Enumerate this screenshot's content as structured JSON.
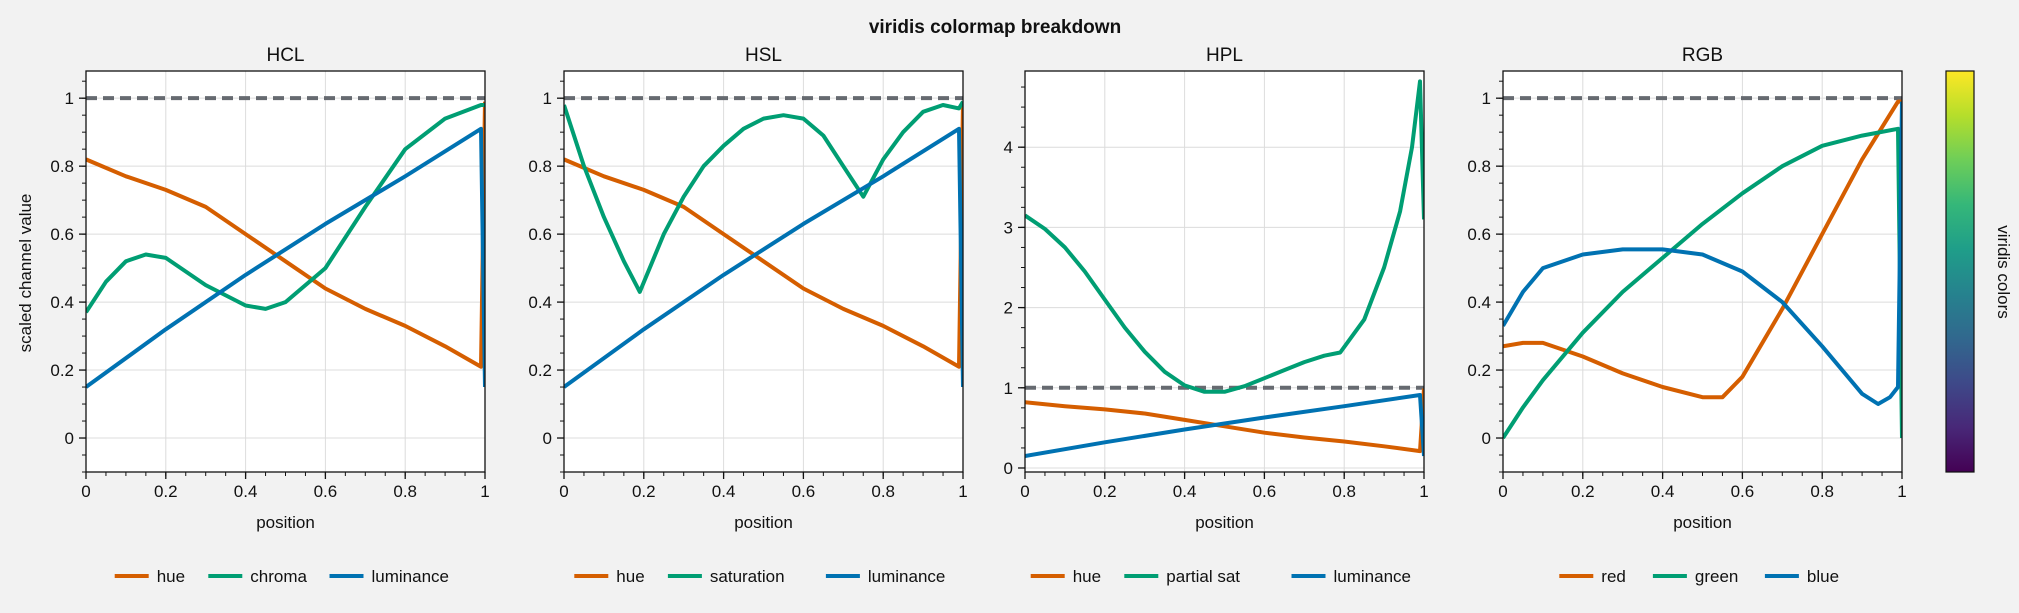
{
  "figure": {
    "suptitle": "viridis colormap breakdown",
    "shared_ylabel": "scaled channel value",
    "reference_color": "#666a70"
  },
  "colorbar": {
    "label": "viridis colors",
    "colors": [
      "#440154",
      "#482878",
      "#3e4989",
      "#31688e",
      "#26828e",
      "#1f9e89",
      "#35b779",
      "#6ece58",
      "#b5de2b",
      "#fde725"
    ]
  },
  "chart_data": [
    {
      "type": "line",
      "title": "HCL",
      "xlabel": "position",
      "ylabel": "scaled channel value",
      "xlim": [
        0,
        1
      ],
      "ylim": [
        -0.1,
        1.08
      ],
      "xticks": [
        "0",
        "0.2",
        "0.4",
        "0.6",
        "0.8",
        "1"
      ],
      "xtick_values": [
        0,
        0.2,
        0.4,
        0.6,
        0.8,
        1
      ],
      "yticks": [
        "0",
        "0.2",
        "0.4",
        "0.6",
        "0.8",
        "1"
      ],
      "ytick_values": [
        0,
        0.2,
        0.4,
        0.6,
        0.8,
        1
      ],
      "grid": true,
      "legend_position": "bottom",
      "reference_line": 1,
      "series": [
        {
          "name": "hue",
          "color": "#d55e00",
          "x": [
            0,
            0.1,
            0.2,
            0.3,
            0.4,
            0.5,
            0.6,
            0.7,
            0.8,
            0.9,
            0.99,
            1
          ],
          "y": [
            0.82,
            0.77,
            0.73,
            0.68,
            0.6,
            0.52,
            0.44,
            0.38,
            0.33,
            0.27,
            0.21,
            0.99
          ]
        },
        {
          "name": "chroma",
          "color": "#009e73",
          "x": [
            0,
            0.05,
            0.1,
            0.15,
            0.2,
            0.3,
            0.4,
            0.45,
            0.5,
            0.6,
            0.7,
            0.8,
            0.9,
            0.99,
            1
          ],
          "y": [
            0.37,
            0.46,
            0.52,
            0.54,
            0.53,
            0.45,
            0.39,
            0.38,
            0.4,
            0.5,
            0.68,
            0.85,
            0.94,
            0.98,
            0.98
          ]
        },
        {
          "name": "luminance",
          "color": "#0072b2",
          "x": [
            0,
            0.2,
            0.4,
            0.6,
            0.8,
            0.99,
            1
          ],
          "y": [
            0.15,
            0.32,
            0.48,
            0.63,
            0.77,
            0.91,
            0.15
          ]
        }
      ]
    },
    {
      "type": "line",
      "title": "HSL",
      "xlabel": "position",
      "ylabel": "",
      "xlim": [
        0,
        1
      ],
      "ylim": [
        -0.1,
        1.08
      ],
      "xticks": [
        "0",
        "0.2",
        "0.4",
        "0.6",
        "0.8",
        "1"
      ],
      "xtick_values": [
        0,
        0.2,
        0.4,
        0.6,
        0.8,
        1
      ],
      "yticks": [
        "0",
        "0.2",
        "0.4",
        "0.6",
        "0.8",
        "1"
      ],
      "ytick_values": [
        0,
        0.2,
        0.4,
        0.6,
        0.8,
        1
      ],
      "grid": true,
      "legend_position": "bottom",
      "reference_line": 1,
      "series": [
        {
          "name": "hue",
          "color": "#d55e00",
          "x": [
            0,
            0.1,
            0.2,
            0.3,
            0.4,
            0.5,
            0.6,
            0.7,
            0.8,
            0.9,
            0.99,
            1
          ],
          "y": [
            0.82,
            0.77,
            0.73,
            0.68,
            0.6,
            0.52,
            0.44,
            0.38,
            0.33,
            0.27,
            0.21,
            0.99
          ]
        },
        {
          "name": "saturation",
          "color": "#009e73",
          "x": [
            0,
            0.05,
            0.1,
            0.15,
            0.19,
            0.25,
            0.3,
            0.35,
            0.4,
            0.45,
            0.5,
            0.55,
            0.6,
            0.65,
            0.7,
            0.75,
            0.8,
            0.85,
            0.9,
            0.95,
            0.99,
            1
          ],
          "y": [
            0.98,
            0.8,
            0.65,
            0.52,
            0.43,
            0.6,
            0.71,
            0.8,
            0.86,
            0.91,
            0.94,
            0.95,
            0.94,
            0.89,
            0.8,
            0.71,
            0.82,
            0.9,
            0.96,
            0.98,
            0.97,
            0.99
          ]
        },
        {
          "name": "luminance",
          "color": "#0072b2",
          "x": [
            0,
            0.2,
            0.4,
            0.6,
            0.8,
            0.99,
            1
          ],
          "y": [
            0.15,
            0.32,
            0.48,
            0.63,
            0.77,
            0.91,
            0.15
          ]
        }
      ]
    },
    {
      "type": "line",
      "title": "HPL",
      "xlabel": "position",
      "ylabel": "",
      "xlim": [
        0,
        1
      ],
      "ylim": [
        -0.05,
        4.95
      ],
      "xticks": [
        "0",
        "0.2",
        "0.4",
        "0.6",
        "0.8",
        "1"
      ],
      "xtick_values": [
        0,
        0.2,
        0.4,
        0.6,
        0.8,
        1
      ],
      "yticks": [
        "0",
        "1",
        "2",
        "3",
        "4"
      ],
      "ytick_values": [
        0,
        1,
        2,
        3,
        4
      ],
      "grid": true,
      "legend_position": "bottom",
      "reference_line": 1,
      "series": [
        {
          "name": "hue",
          "color": "#d55e00",
          "x": [
            0,
            0.1,
            0.2,
            0.3,
            0.4,
            0.5,
            0.6,
            0.7,
            0.8,
            0.9,
            0.99,
            1
          ],
          "y": [
            0.82,
            0.77,
            0.73,
            0.68,
            0.6,
            0.52,
            0.44,
            0.38,
            0.33,
            0.27,
            0.21,
            0.99
          ]
        },
        {
          "name": "partial sat",
          "color": "#009e73",
          "x": [
            0,
            0.05,
            0.1,
            0.15,
            0.2,
            0.25,
            0.3,
            0.35,
            0.4,
            0.45,
            0.5,
            0.55,
            0.6,
            0.65,
            0.7,
            0.75,
            0.79,
            0.85,
            0.9,
            0.94,
            0.97,
            0.99,
            1
          ],
          "y": [
            3.15,
            2.98,
            2.75,
            2.45,
            2.1,
            1.75,
            1.45,
            1.2,
            1.03,
            0.95,
            0.95,
            1.02,
            1.12,
            1.22,
            1.32,
            1.4,
            1.44,
            1.85,
            2.5,
            3.2,
            4.0,
            4.82,
            3.1
          ]
        },
        {
          "name": "luminance",
          "color": "#0072b2",
          "x": [
            0,
            0.2,
            0.4,
            0.6,
            0.8,
            0.99,
            1
          ],
          "y": [
            0.15,
            0.32,
            0.48,
            0.63,
            0.77,
            0.91,
            0.15
          ]
        }
      ]
    },
    {
      "type": "line",
      "title": "RGB",
      "xlabel": "position",
      "ylabel": "",
      "xlim": [
        0,
        1
      ],
      "ylim": [
        -0.1,
        1.08
      ],
      "xticks": [
        "0",
        "0.2",
        "0.4",
        "0.6",
        "0.8",
        "1"
      ],
      "xtick_values": [
        0,
        0.2,
        0.4,
        0.6,
        0.8,
        1
      ],
      "yticks": [
        "0",
        "0.2",
        "0.4",
        "0.6",
        "0.8",
        "1"
      ],
      "ytick_values": [
        0,
        0.2,
        0.4,
        0.6,
        0.8,
        1
      ],
      "grid": true,
      "legend_position": "bottom",
      "reference_line": 1,
      "series": [
        {
          "name": "red",
          "color": "#d55e00",
          "x": [
            0,
            0.05,
            0.1,
            0.2,
            0.3,
            0.4,
            0.5,
            0.55,
            0.6,
            0.7,
            0.8,
            0.9,
            0.99,
            1
          ],
          "y": [
            0.27,
            0.28,
            0.28,
            0.24,
            0.19,
            0.15,
            0.12,
            0.12,
            0.18,
            0.38,
            0.6,
            0.82,
            0.99,
            0.99
          ]
        },
        {
          "name": "green",
          "color": "#009e73",
          "x": [
            0,
            0.05,
            0.1,
            0.2,
            0.3,
            0.4,
            0.5,
            0.6,
            0.7,
            0.8,
            0.9,
            0.99,
            1
          ],
          "y": [
            0.0,
            0.09,
            0.17,
            0.31,
            0.43,
            0.53,
            0.63,
            0.72,
            0.8,
            0.86,
            0.89,
            0.91,
            0.0
          ]
        },
        {
          "name": "blue",
          "color": "#0072b2",
          "x": [
            0,
            0.05,
            0.1,
            0.2,
            0.3,
            0.4,
            0.5,
            0.6,
            0.7,
            0.8,
            0.9,
            0.94,
            0.97,
            0.99,
            1
          ],
          "y": [
            0.33,
            0.43,
            0.5,
            0.54,
            0.555,
            0.555,
            0.54,
            0.49,
            0.4,
            0.27,
            0.13,
            0.1,
            0.12,
            0.15,
            0.99
          ]
        }
      ]
    }
  ]
}
